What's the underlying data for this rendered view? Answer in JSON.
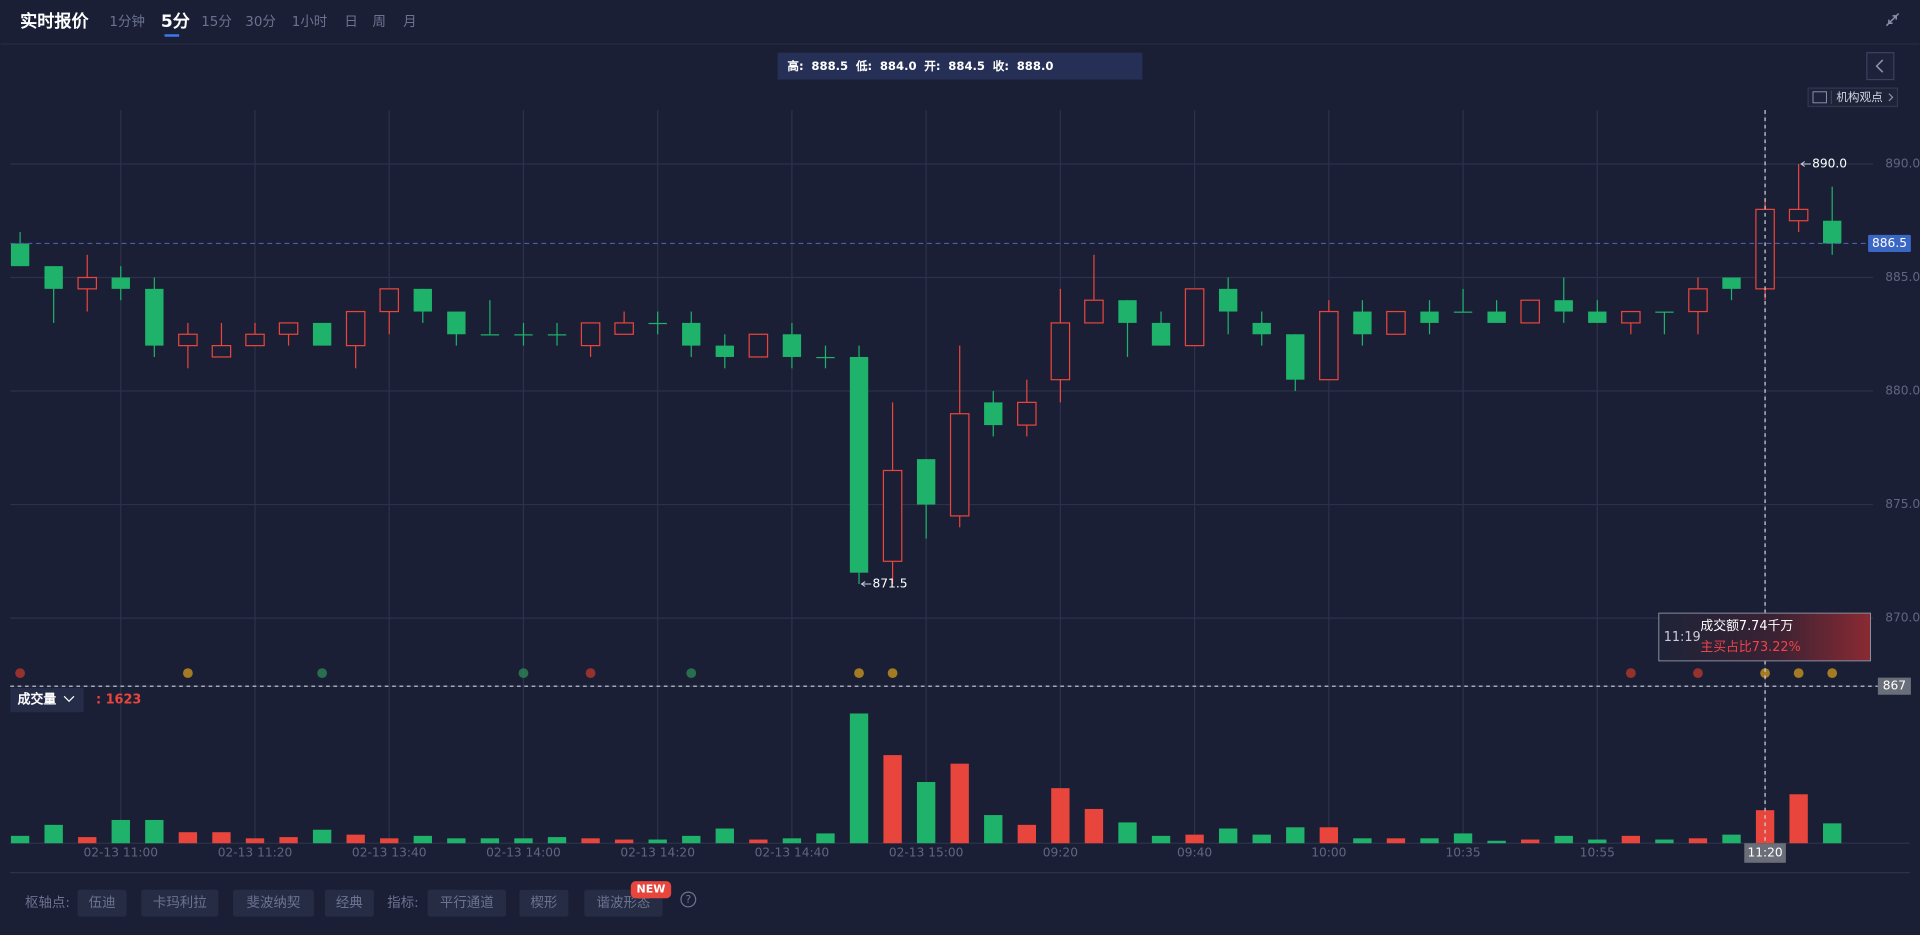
{
  "header": {
    "title": "实时报价",
    "tabs": [
      "1分钟",
      "5分",
      "15分",
      "30分",
      "1小时",
      "日",
      "周",
      "月"
    ]
  },
  "ohlc_info": {
    "high_label": "高:",
    "high": "888.5",
    "low_label": "低:",
    "low": "884.0",
    "open_label": "开:",
    "open": "884.5",
    "close_label": "收:",
    "close": "888.0"
  },
  "side_tag": "机构观点",
  "chart_data": {
    "type": "candlestick",
    "categories": [
      null,
      null,
      null,
      "02-13 11:00",
      null,
      null,
      null,
      "02-13 11:20",
      null,
      null,
      null,
      "02-13 13:40",
      null,
      null,
      null,
      "02-13 14:00",
      null,
      null,
      null,
      "02-13 14:20",
      null,
      null,
      null,
      "02-13 14:40",
      null,
      null,
      null,
      "02-13 15:00",
      null,
      null,
      null,
      "09:20",
      null,
      null,
      null,
      "09:40",
      null,
      null,
      null,
      "10:00",
      null,
      null,
      null,
      "10:35",
      null,
      null,
      null,
      "10:55",
      null,
      null,
      null,
      null,
      "11:20",
      null,
      null
    ],
    "open": [
      886.5,
      885.5,
      884.5,
      885,
      884.5,
      882,
      881.5,
      882,
      882.5,
      883,
      882,
      883.5,
      884.5,
      883.5,
      882.5,
      882.5,
      882.5,
      882,
      882.5,
      883,
      883,
      882,
      881.5,
      882.5,
      881.5,
      881.5,
      872.5,
      877,
      874.5,
      879.5,
      878.5,
      880.5,
      883,
      884,
      883,
      882,
      884.5,
      883,
      882.5,
      880.5,
      883.5,
      882.5,
      883.5,
      883.5,
      883.5,
      883,
      884,
      883.5,
      883,
      883.5,
      883.5,
      885,
      884.5,
      887.5,
      887.5
    ],
    "high": [
      887,
      885.5,
      886,
      885.5,
      885,
      883,
      883,
      883,
      883,
      883,
      883.5,
      884.5,
      884.5,
      883.5,
      884,
      883,
      883,
      883,
      883.5,
      883.5,
      883.5,
      882.5,
      882.5,
      883,
      882,
      882,
      879.5,
      877,
      882,
      880,
      880.5,
      884.5,
      886,
      884,
      883.5,
      884.5,
      885,
      883.5,
      882.5,
      884,
      884,
      883.5,
      884,
      884.5,
      884,
      884,
      885,
      884,
      883.5,
      883.5,
      885,
      885,
      888.5,
      890,
      889
    ],
    "low": [
      885.5,
      883,
      883.5,
      884,
      881.5,
      881,
      881.5,
      882,
      882,
      882,
      881,
      882.5,
      883,
      882,
      882.5,
      882,
      882,
      881.5,
      882.5,
      882.5,
      881.5,
      881,
      881.5,
      881,
      881,
      871.5,
      871.5,
      873.5,
      874,
      878,
      878,
      879.5,
      883,
      881.5,
      882,
      882,
      882.5,
      882,
      880,
      880.5,
      882,
      882.5,
      882.5,
      883.5,
      883,
      883,
      883,
      883,
      882.5,
      882.5,
      882.5,
      884,
      884,
      887,
      886
    ],
    "close": [
      885.5,
      884.5,
      885,
      884.5,
      882,
      882.5,
      882,
      882.5,
      883,
      882,
      883.5,
      884.5,
      883.5,
      882.5,
      882.5,
      882.5,
      882.5,
      883,
      883,
      883,
      882,
      881.5,
      882.5,
      881.5,
      881.5,
      872,
      876.5,
      875,
      879,
      878.5,
      879.5,
      883,
      884,
      883,
      882,
      884.5,
      883.5,
      882.5,
      880.5,
      883.5,
      882.5,
      883.5,
      883,
      883.5,
      883,
      884,
      883.5,
      883,
      883.5,
      883.5,
      884.5,
      884.5,
      888,
      888,
      886.5
    ],
    "up_color": "#e8453c",
    "down_color": "#1fb26a",
    "ylim": [
      867,
      892.5
    ],
    "yticks": [
      {
        "value": 870,
        "label": "870.0"
      },
      {
        "value": 875,
        "label": "875.0"
      },
      {
        "value": 880,
        "label": "880.0"
      },
      {
        "value": 885,
        "label": "885.0"
      },
      {
        "value": 890,
        "label": "890.0"
      }
    ],
    "grid": true,
    "last_price": 886.5,
    "crosshair_price": 867,
    "annotations": [
      {
        "kind": "high",
        "value": 890,
        "label": "890.0"
      },
      {
        "kind": "low",
        "value": 871.5,
        "label": "871.5"
      }
    ],
    "volume": {
      "label": "成交量",
      "current_label": ": 1623",
      "values": [
        600,
        1500,
        500,
        1900,
        1900,
        900,
        900,
        400,
        500,
        1100,
        700,
        400,
        600,
        400,
        400,
        400,
        500,
        400,
        300,
        300,
        600,
        1200,
        300,
        400,
        800,
        10600,
        7200,
        5000,
        6500,
        2300,
        1500,
        4500,
        2800,
        1700,
        600,
        700,
        1200,
        700,
        1300,
        1300,
        400,
        400,
        400,
        800,
        200,
        300,
        600,
        300,
        600,
        300,
        400,
        700,
        2700,
        4000,
        1623
      ]
    }
  },
  "tooltip": {
    "time": "11:19",
    "amount": "成交额7.74千万",
    "ratio": "主买占比73.22%"
  },
  "toolbar": {
    "pivot_label": "枢轴点:",
    "pivots": [
      "伍迪",
      "卡玛利拉",
      "斐波纳契",
      "经典"
    ],
    "indicator_label": "指标:",
    "indicators": [
      "平行通道",
      "楔形",
      "谐波形态"
    ],
    "badge": "NEW",
    "help": "?"
  }
}
